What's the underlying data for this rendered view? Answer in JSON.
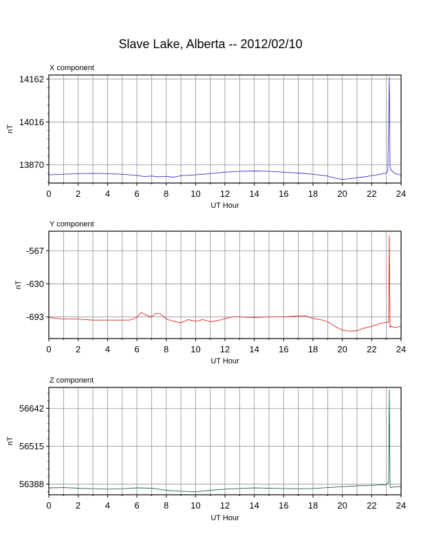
{
  "page": {
    "title": "Slave Lake, Alberta -- 2012/02/10"
  },
  "chart_data": [
    {
      "type": "line",
      "title": "X component",
      "xlabel": "UT Hour",
      "ylabel": "nT",
      "color": "#3333cc",
      "xlim": [
        0,
        24
      ],
      "ylim": [
        13808,
        14176
      ],
      "xticks": [
        0,
        2,
        4,
        6,
        8,
        10,
        12,
        14,
        16,
        18,
        20,
        22,
        24
      ],
      "yticks": [
        13870,
        14016,
        14162
      ],
      "grid": true,
      "x": [
        0,
        1,
        2,
        3,
        4,
        5,
        6,
        6.5,
        7,
        7.5,
        8,
        8.5,
        9,
        10,
        11,
        12,
        13,
        14,
        15,
        16,
        17,
        18,
        19,
        19.5,
        20,
        20.5,
        21,
        21.5,
        22,
        22.5,
        23,
        23.1,
        23.2,
        23.25,
        23.3,
        23.4,
        23.6,
        24
      ],
      "y": [
        13836,
        13838,
        13840,
        13841,
        13840,
        13838,
        13834,
        13830,
        13832,
        13829,
        13831,
        13828,
        13833,
        13836,
        13840,
        13845,
        13848,
        13849,
        13848,
        13845,
        13842,
        13838,
        13832,
        13825,
        13820,
        13823,
        13826,
        13829,
        13833,
        13837,
        13842,
        13850,
        14170,
        13862,
        13855,
        13848,
        13840,
        13835
      ]
    },
    {
      "type": "line",
      "title": "Y component",
      "xlabel": "UT Hour",
      "ylabel": "nT",
      "color": "#dd2222",
      "xlim": [
        0,
        24
      ],
      "ylim": [
        -734,
        -530
      ],
      "xticks": [
        0,
        2,
        4,
        6,
        8,
        10,
        12,
        14,
        16,
        18,
        20,
        22,
        24
      ],
      "yticks": [
        -567,
        -630,
        -693
      ],
      "grid": true,
      "x": [
        0,
        1,
        2,
        3,
        4,
        5,
        5.5,
        6,
        6.3,
        6.6,
        7,
        7.3,
        7.6,
        8,
        8.5,
        9,
        9.5,
        10,
        10.5,
        11,
        11.5,
        12,
        12.5,
        13,
        14,
        15,
        16,
        17,
        17.5,
        18,
        18.5,
        19,
        19.5,
        20,
        20.5,
        21,
        21.5,
        22,
        22.5,
        23,
        23.15,
        23.2,
        23.25,
        23.3,
        23.5,
        24
      ],
      "y": [
        -694,
        -697,
        -697,
        -699,
        -699,
        -699,
        -699,
        -694,
        -684,
        -689,
        -693,
        -686,
        -687,
        -697,
        -701,
        -704,
        -698,
        -701,
        -698,
        -702,
        -700,
        -696,
        -693,
        -693,
        -694,
        -693,
        -693,
        -691,
        -691,
        -696,
        -698,
        -702,
        -711,
        -718,
        -720,
        -719,
        -714,
        -711,
        -706,
        -703,
        -703,
        -538,
        -713,
        -710,
        -713,
        -711
      ]
    },
    {
      "type": "line",
      "title": "Z component",
      "xlabel": "UT Hour",
      "ylabel": "nT",
      "color": "#226644",
      "xlim": [
        0,
        24
      ],
      "ylim": [
        56352,
        56712
      ],
      "xticks": [
        0,
        2,
        4,
        6,
        8,
        10,
        12,
        14,
        16,
        18,
        20,
        22,
        24
      ],
      "yticks": [
        56388,
        56515,
        56642
      ],
      "grid": true,
      "x": [
        0,
        1,
        2,
        3,
        4,
        5,
        6,
        7,
        7.5,
        8,
        9,
        10,
        11,
        12,
        13,
        14,
        15,
        16,
        17,
        18,
        19,
        20,
        21,
        22,
        22.5,
        23,
        23.15,
        23.2,
        23.25,
        23.3,
        23.5,
        24
      ],
      "y": [
        56375,
        56376,
        56374,
        56372,
        56371,
        56372,
        56375,
        56374,
        56371,
        56367,
        56364,
        56362,
        56367,
        56371,
        56373,
        56375,
        56374,
        56373,
        56372,
        56373,
        56376,
        56379,
        56382,
        56383,
        56385,
        56386,
        56395,
        56704,
        56378,
        56376,
        56378,
        56380
      ]
    }
  ]
}
